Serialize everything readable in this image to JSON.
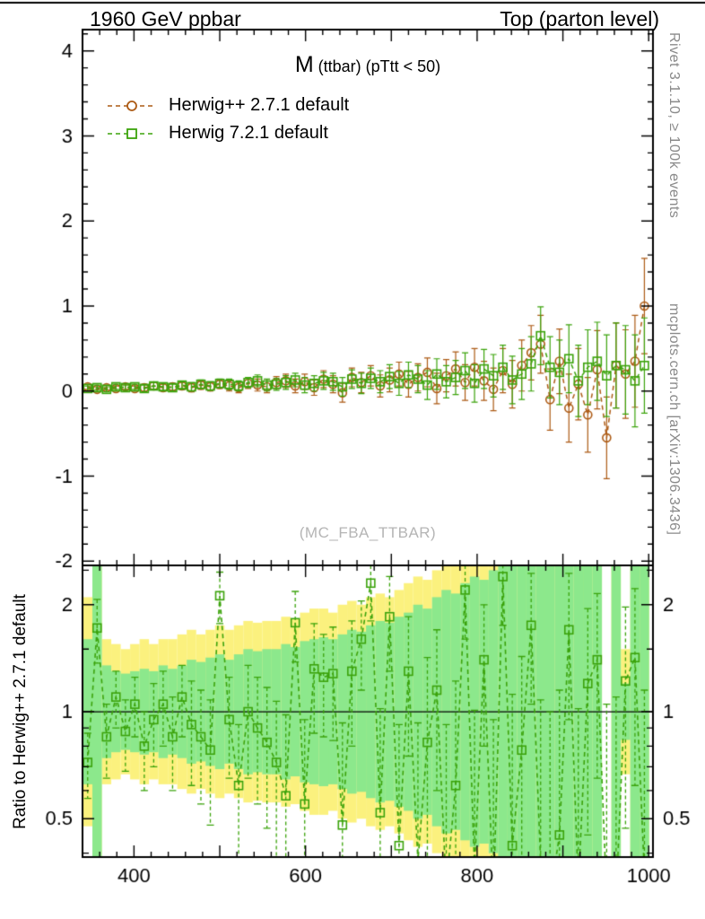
{
  "header": {
    "left": "1960 GeV ppbar",
    "right": "Top (parton level)"
  },
  "plot_title": {
    "main": "M",
    "sub": "(ttbar) (pTtt < 50)"
  },
  "watermark": "(MC_FBA_TTBAR)",
  "side_notes": {
    "top_right": "Rivet 3.1.10, ≥ 100k events",
    "bottom_right": "mcplots.cern.ch [arXiv:1306.3436]"
  },
  "ratio_axis_label": "Ratio to Herwig++ 2.7.1 default",
  "colors": {
    "frame": "#000000",
    "note_gray": "#8a8a8a",
    "watermark_gray": "#b5b5b5"
  },
  "chart_data": {
    "type": "line",
    "title": "M (ttbar) (pTtt < 50)",
    "xlabel": "",
    "ylabel": "",
    "bin_width": 11,
    "x": [
      346,
      357,
      368,
      379,
      390,
      401,
      412,
      423,
      434,
      445,
      456,
      467,
      478,
      489,
      500,
      511,
      522,
      533,
      544,
      555,
      566,
      577,
      588,
      599,
      610,
      621,
      632,
      643,
      654,
      665,
      676,
      687,
      698,
      709,
      720,
      731,
      742,
      753,
      764,
      775,
      786,
      797,
      808,
      819,
      830,
      841,
      852,
      863,
      874,
      885,
      896,
      907,
      918,
      929,
      940,
      951,
      962,
      973,
      984,
      995
    ],
    "series": [
      {
        "name": "Herwig++ 2.7.1 default",
        "marker": "circle",
        "color": "#AC5A14",
        "values": [
          0.05,
          0.02,
          0.04,
          0.03,
          0.05,
          0.03,
          0.04,
          0.06,
          0.04,
          0.05,
          0.06,
          0.04,
          0.07,
          0.05,
          0.08,
          0.06,
          0.04,
          0.09,
          0.07,
          0.05,
          0.1,
          0.12,
          0.06,
          0.11,
          0.04,
          0.14,
          0.08,
          -0.02,
          0.16,
          0.1,
          0.18,
          0.06,
          0.13,
          0.2,
          0.08,
          0.16,
          0.22,
          0.03,
          0.18,
          0.26,
          0.1,
          0.28,
          0.12,
          0.02,
          0.24,
          0.08,
          0.3,
          0.45,
          0.55,
          -0.1,
          0.35,
          -0.2,
          0.08,
          -0.28,
          0.25,
          -0.55,
          0.3,
          0.2,
          0.35,
          1.0
        ],
        "errors": [
          0.03,
          0.03,
          0.03,
          0.03,
          0.03,
          0.03,
          0.04,
          0.04,
          0.04,
          0.04,
          0.04,
          0.05,
          0.05,
          0.05,
          0.05,
          0.06,
          0.06,
          0.06,
          0.07,
          0.07,
          0.07,
          0.08,
          0.08,
          0.09,
          0.09,
          0.1,
          0.1,
          0.11,
          0.11,
          0.12,
          0.12,
          0.13,
          0.14,
          0.14,
          0.15,
          0.16,
          0.17,
          0.18,
          0.19,
          0.2,
          0.21,
          0.22,
          0.23,
          0.25,
          0.26,
          0.28,
          0.3,
          0.32,
          0.34,
          0.36,
          0.38,
          0.4,
          0.42,
          0.44,
          0.46,
          0.48,
          0.5,
          0.52,
          0.54,
          0.56
        ]
      },
      {
        "name": "Herwig 7.2.1 default",
        "marker": "square",
        "color": "#3BA30B",
        "values": [
          0.03,
          0.04,
          0.02,
          0.05,
          0.04,
          0.05,
          0.03,
          0.06,
          0.05,
          0.04,
          0.07,
          0.05,
          0.08,
          0.06,
          0.09,
          0.08,
          0.06,
          0.1,
          0.12,
          0.07,
          0.08,
          0.1,
          0.13,
          0.07,
          0.09,
          0.12,
          0.11,
          0.05,
          0.14,
          0.09,
          0.15,
          0.11,
          0.17,
          0.09,
          0.19,
          0.14,
          0.07,
          0.2,
          0.11,
          0.16,
          0.24,
          0.09,
          0.26,
          0.18,
          0.28,
          0.13,
          0.2,
          0.32,
          0.65,
          0.28,
          0.22,
          0.38,
          0.12,
          0.28,
          0.35,
          0.18,
          0.3,
          0.25,
          0.12,
          0.3
        ],
        "errors": [
          0.03,
          0.03,
          0.03,
          0.03,
          0.03,
          0.03,
          0.04,
          0.04,
          0.04,
          0.04,
          0.04,
          0.05,
          0.05,
          0.05,
          0.05,
          0.06,
          0.06,
          0.06,
          0.07,
          0.07,
          0.07,
          0.08,
          0.08,
          0.09,
          0.09,
          0.1,
          0.1,
          0.11,
          0.11,
          0.12,
          0.12,
          0.13,
          0.14,
          0.14,
          0.15,
          0.16,
          0.17,
          0.18,
          0.19,
          0.2,
          0.21,
          0.22,
          0.23,
          0.25,
          0.26,
          0.28,
          0.3,
          0.32,
          0.34,
          0.36,
          0.38,
          0.4,
          0.42,
          0.44,
          0.46,
          0.48,
          0.5,
          0.52,
          0.54,
          0.56
        ]
      }
    ],
    "ratio": {
      "reference": "Herwig++ 2.7.1 default",
      "series_shown": "Herwig 7.2.1 default",
      "values": [
        0.72,
        1.72,
        0.85,
        1.1,
        0.88,
        1.05,
        0.8,
        0.95,
        1.05,
        0.85,
        1.1,
        0.92,
        0.85,
        0.78,
        2.12,
        0.95,
        0.62,
        1.0,
        0.9,
        0.82,
        0.72,
        0.58,
        1.78,
        0.55,
        1.32,
        1.25,
        1.28,
        0.48,
        1.3,
        1.6,
        2.3,
        0.52,
        1.85,
        0.42,
        1.3,
        0.38,
        0.82,
        1.15,
        0.32,
        0.62,
        2.2,
        0.36,
        1.4,
        0.3,
        2.4,
        0.42,
        0.78,
        1.75,
        0.38,
        0.3,
        0.45,
        1.7,
        0.32,
        1.2,
        1.4,
        0.3,
        0.3,
        1.22,
        1.42,
        0.35
      ],
      "errors": [
        0.15,
        0.35,
        0.2,
        0.2,
        0.2,
        0.2,
        0.2,
        0.25,
        0.25,
        0.25,
        0.25,
        0.3,
        0.3,
        0.3,
        0.35,
        0.3,
        0.3,
        0.35,
        0.35,
        0.35,
        0.35,
        0.4,
        0.4,
        0.4,
        0.45,
        0.4,
        0.45,
        0.45,
        0.5,
        0.45,
        0.5,
        0.5,
        0.55,
        0.5,
        0.55,
        0.55,
        0.6,
        0.55,
        0.6,
        0.6,
        0.6,
        0.65,
        0.6,
        0.65,
        0.65,
        0.7,
        0.65,
        0.7,
        0.7,
        0.7,
        0.7,
        0.75,
        0.7,
        0.75,
        0.75,
        0.75,
        0.8,
        0.75,
        0.8,
        0.8
      ],
      "band_green": [
        1.6,
        2.6,
        1.35,
        1.3,
        1.28,
        1.3,
        1.32,
        1.3,
        1.35,
        1.32,
        1.35,
        1.4,
        1.38,
        1.42,
        1.45,
        1.4,
        1.45,
        1.5,
        1.48,
        1.5,
        1.5,
        1.55,
        1.52,
        1.58,
        1.6,
        1.62,
        1.6,
        1.65,
        1.7,
        1.68,
        1.75,
        1.8,
        1.78,
        1.85,
        1.9,
        2.0,
        1.95,
        2.1,
        2.2,
        2.15,
        2.3,
        2.4,
        2.35,
        2.5,
        2.6,
        2.7,
        2.6,
        2.8,
        2.9,
        3.0,
        3.0,
        3.0,
        3.0,
        3.0,
        3.0,
        1.0,
        3.0,
        1.2,
        3.0,
        3.0
      ],
      "band_yellow": [
        2.1,
        3.2,
        1.6,
        1.55,
        1.5,
        1.55,
        1.6,
        1.55,
        1.6,
        1.6,
        1.65,
        1.7,
        1.65,
        1.7,
        1.75,
        1.7,
        1.75,
        1.8,
        1.78,
        1.8,
        1.8,
        1.85,
        1.82,
        1.9,
        1.95,
        1.95,
        1.9,
        2.0,
        2.05,
        2.0,
        2.1,
        2.15,
        2.1,
        2.2,
        2.3,
        2.4,
        2.35,
        2.5,
        2.6,
        2.6,
        2.8,
        2.9,
        2.8,
        3.0,
        3.1,
        3.2,
        3.1,
        3.3,
        3.4,
        3.5,
        3.5,
        3.5,
        3.5,
        3.5,
        3.5,
        1.0,
        3.5,
        1.5,
        3.5,
        3.5
      ],
      "band_colors": {
        "inner": "#8CE88C",
        "outer": "#FBF17E"
      }
    },
    "axes": {
      "x": {
        "min": 340,
        "max": 1005,
        "tick_labels": [
          400,
          600,
          800,
          1000
        ],
        "minor_step": 20,
        "major_step": 100
      },
      "y_main": {
        "min": -2.05,
        "max": 4.25,
        "tick_labels": [
          -2,
          -1,
          0,
          1,
          2,
          3,
          4
        ],
        "minor_step": 0.2
      },
      "y_ratio": {
        "min": 0.39,
        "max": 2.58,
        "scale": "log",
        "tick_labels": [
          0.5,
          1,
          2
        ],
        "minor_ticks": [
          0.4,
          0.6,
          0.7,
          0.8,
          0.9,
          1.5,
          2.5
        ],
        "reference_line": 1
      }
    },
    "legend_position": "top-left",
    "grid": false
  }
}
